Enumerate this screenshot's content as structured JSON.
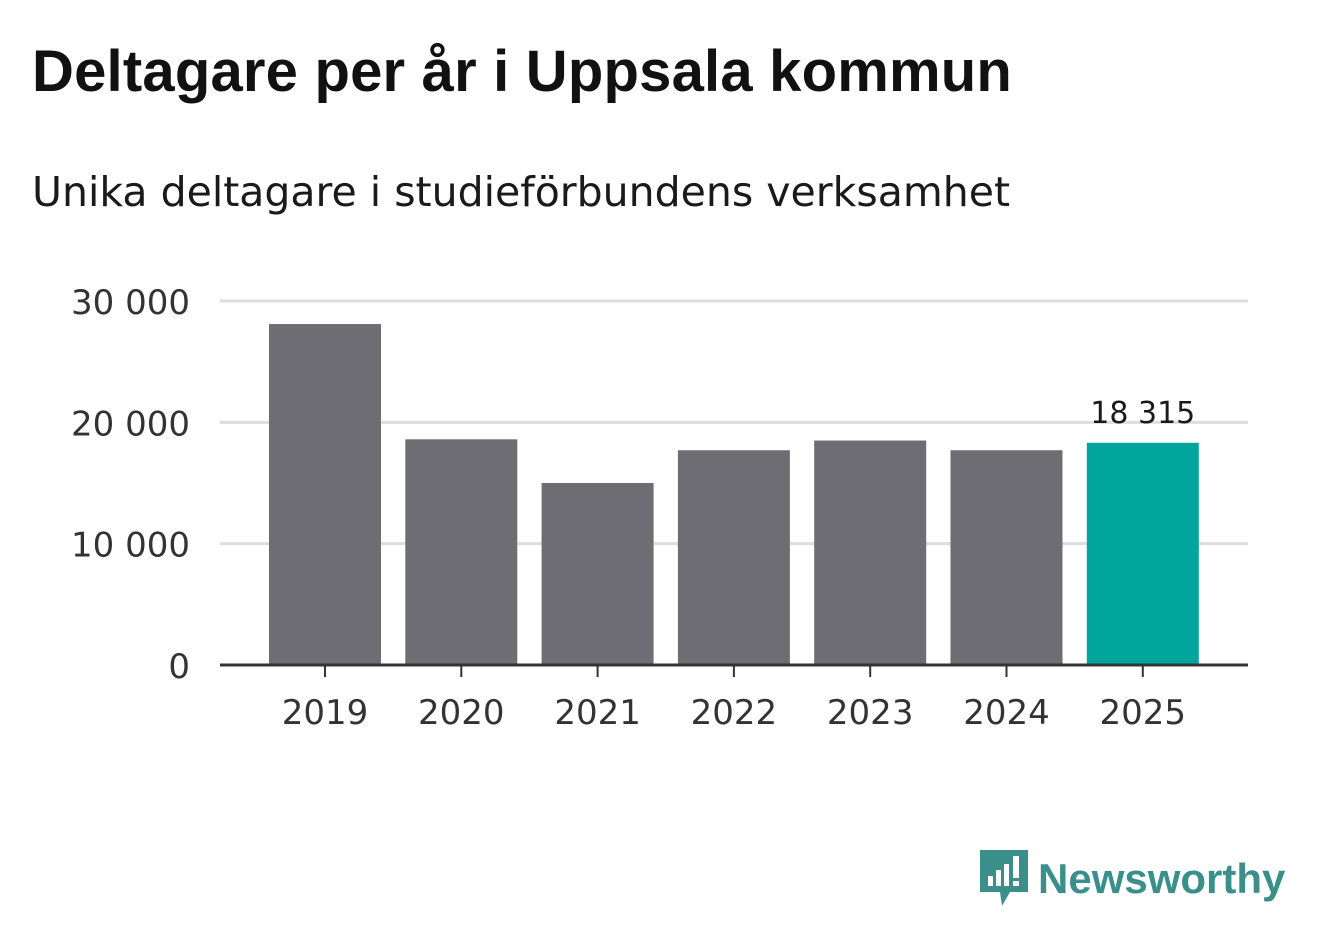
{
  "title": "Deltagare per år i Uppsala kommun",
  "subtitle": "Unika deltagare i studieförbundens verksamhet",
  "brand": {
    "name": "Newsworthy",
    "color": "#3a8f8b"
  },
  "colors": {
    "bar": "#6e6d73",
    "highlight": "#00a59b",
    "grid": "#dddddd",
    "axis": "#333333"
  },
  "chart_data": {
    "type": "bar",
    "categories": [
      "2019",
      "2020",
      "2021",
      "2022",
      "2023",
      "2024",
      "2025"
    ],
    "values": [
      28100,
      18600,
      15000,
      17700,
      18500,
      17700,
      18315
    ],
    "highlight_index": 6,
    "highlight_label": "18 315",
    "yticks": [
      0,
      10000,
      20000,
      30000
    ],
    "ytick_labels": [
      "0",
      "10 000",
      "20 000",
      "30 000"
    ],
    "ylim": [
      0,
      30000
    ],
    "xlabel": "",
    "ylabel": "",
    "grid": true
  }
}
